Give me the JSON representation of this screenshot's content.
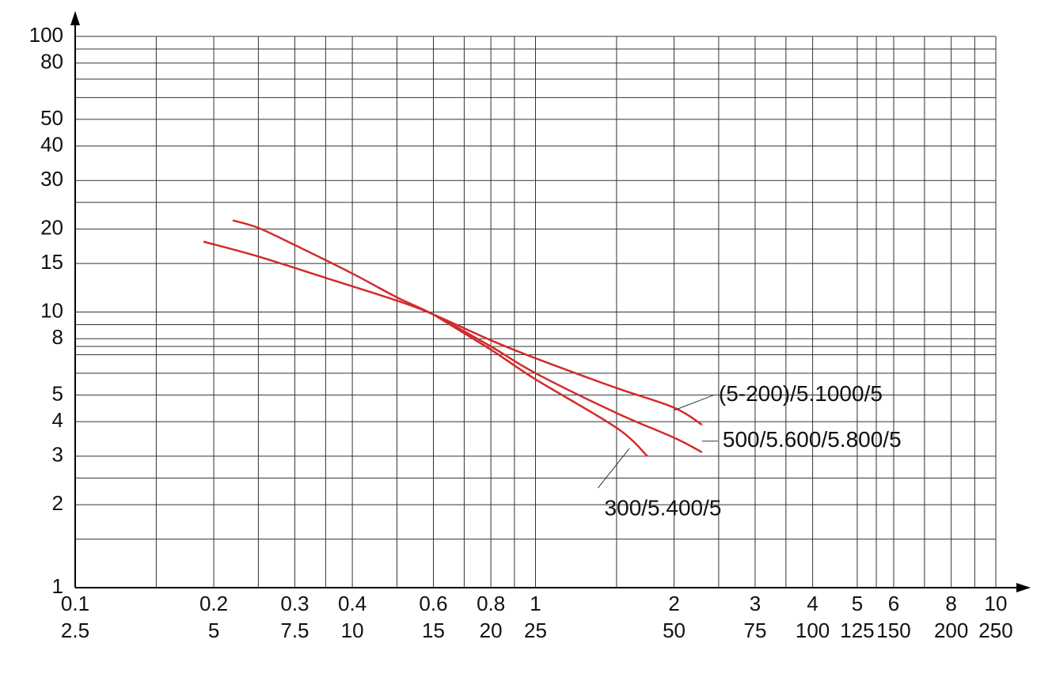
{
  "chart_data": {
    "type": "line",
    "title": "",
    "xlabel": "",
    "ylabel": "",
    "x_scale": "log",
    "y_scale": "log",
    "xlim": [
      0.1,
      10
    ],
    "ylim": [
      1,
      100
    ],
    "grid": true,
    "colors": {
      "series": "#d42a2a",
      "grid": "#333333",
      "axis": "#000000",
      "leader": "#333333"
    },
    "x_gridlines": [
      0.1,
      0.15,
      0.2,
      0.25,
      0.3,
      0.35,
      0.4,
      0.5,
      0.6,
      0.7,
      0.8,
      0.9,
      1,
      1.5,
      2,
      2.5,
      3,
      3.5,
      4,
      5,
      5.5,
      6,
      7,
      8,
      9,
      10
    ],
    "y_gridlines": [
      1,
      1.5,
      2,
      2.5,
      3,
      4,
      5,
      6,
      7,
      7.5,
      8,
      9,
      10,
      15,
      20,
      25,
      30,
      40,
      50,
      60,
      70,
      80,
      90,
      100
    ],
    "x_ticks": [
      {
        "value": 0.1,
        "top": "0.1",
        "bottom": "2.5"
      },
      {
        "value": 0.2,
        "top": "0.2",
        "bottom": "5"
      },
      {
        "value": 0.3,
        "top": "0.3",
        "bottom": "7.5"
      },
      {
        "value": 0.4,
        "top": "0.4",
        "bottom": "10"
      },
      {
        "value": 0.6,
        "top": "0.6",
        "bottom": "15"
      },
      {
        "value": 0.8,
        "top": "0.8",
        "bottom": "20"
      },
      {
        "value": 1,
        "top": "1",
        "bottom": "25"
      },
      {
        "value": 2,
        "top": "2",
        "bottom": "50"
      },
      {
        "value": 3,
        "top": "3",
        "bottom": "75"
      },
      {
        "value": 4,
        "top": "4",
        "bottom": "100"
      },
      {
        "value": 5,
        "top": "5",
        "bottom": "125"
      },
      {
        "value": 6,
        "top": "6",
        "bottom": "150"
      },
      {
        "value": 8,
        "top": "8",
        "bottom": "200"
      },
      {
        "value": 10,
        "top": "10",
        "bottom": "250"
      }
    ],
    "y_ticks": [
      {
        "value": 100,
        "label": "100"
      },
      {
        "value": 80,
        "label": "80"
      },
      {
        "value": 50,
        "label": "50"
      },
      {
        "value": 40,
        "label": "40"
      },
      {
        "value": 30,
        "label": "30"
      },
      {
        "value": 20,
        "label": "20"
      },
      {
        "value": 15,
        "label": "15"
      },
      {
        "value": 10,
        "label": "10"
      },
      {
        "value": 8,
        "label": "8"
      },
      {
        "value": 5,
        "label": "5"
      },
      {
        "value": 4,
        "label": "4"
      },
      {
        "value": 3,
        "label": "3"
      },
      {
        "value": 2,
        "label": "2"
      },
      {
        "value": 1,
        "label": "1"
      }
    ],
    "series": [
      {
        "name": "(5-200)/5.1000/5",
        "points": [
          [
            0.19,
            18.0
          ],
          [
            0.25,
            15.9
          ],
          [
            0.35,
            13.3
          ],
          [
            0.5,
            11.0
          ],
          [
            0.6,
            9.8
          ],
          [
            0.8,
            7.9
          ],
          [
            1.0,
            6.8
          ],
          [
            1.5,
            5.3
          ],
          [
            2.0,
            4.5
          ],
          [
            2.3,
            3.9
          ]
        ],
        "label_anchor": [
          2.0,
          4.4
        ],
        "label_at": [
          2.5,
          5.0
        ]
      },
      {
        "name": "500/5.600/5.800/5",
        "points": [
          [
            0.22,
            21.5
          ],
          [
            0.25,
            20.2
          ],
          [
            0.3,
            17.5
          ],
          [
            0.4,
            13.8
          ],
          [
            0.5,
            11.3
          ],
          [
            0.6,
            9.8
          ],
          [
            0.8,
            7.5
          ],
          [
            1.0,
            6.0
          ],
          [
            1.5,
            4.3
          ],
          [
            2.0,
            3.5
          ],
          [
            2.3,
            3.1
          ]
        ],
        "label_anchor": [
          2.3,
          3.4
        ],
        "label_at": [
          2.55,
          3.4
        ]
      },
      {
        "name": "300/5.400/5",
        "points": [
          [
            0.6,
            9.8
          ],
          [
            0.8,
            7.3
          ],
          [
            1.0,
            5.7
          ],
          [
            1.5,
            3.8
          ],
          [
            1.75,
            3.0
          ]
        ],
        "label_anchor": [
          1.6,
          3.2
        ],
        "label_at": [
          1.4,
          2.3
        ]
      }
    ]
  }
}
